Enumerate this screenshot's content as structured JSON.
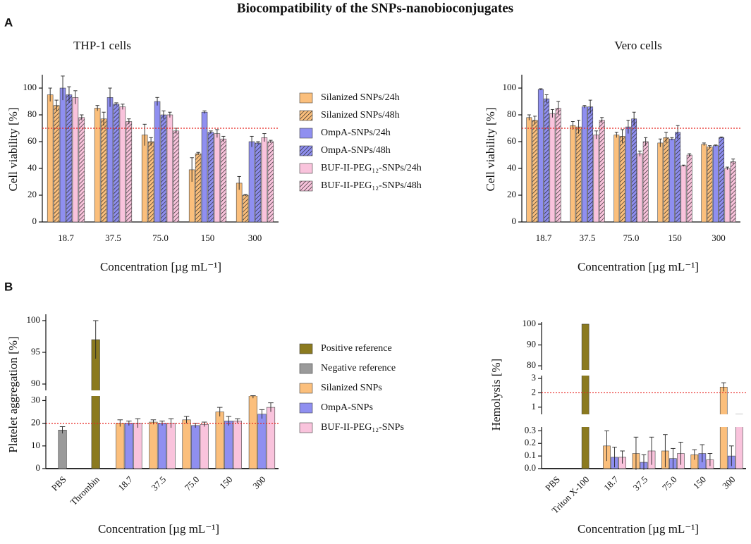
{
  "title": "Biocompatibility of the SNPs-nanobioconjugates",
  "panel_labels": [
    "A",
    "B"
  ],
  "chart_data": [
    {
      "type": "bar",
      "subtitle": "THP-1 cells",
      "y_label": "Cell viability [%]",
      "x_label": "Concentration [µg mL⁻¹]",
      "categories": [
        "18.7",
        "37.5",
        "75.0",
        "150",
        "300"
      ],
      "ylim": [
        0,
        110
      ],
      "yticks": [
        0,
        20,
        40,
        60,
        80,
        100
      ],
      "reference_line": {
        "value": 70,
        "color": "#e8231f"
      },
      "legend": "right",
      "series": [
        {
          "name": "Silanized SNPs/24h",
          "color": "#fbbf7c",
          "hatch": false,
          "values": [
            95,
            85,
            65,
            39,
            29
          ],
          "errors": [
            5,
            2,
            8,
            9,
            5
          ]
        },
        {
          "name": "Silanized SNPs/48h",
          "color": "#fbbf7c",
          "hatch": true,
          "values": [
            87,
            77,
            60,
            51,
            20
          ],
          "errors": [
            4,
            5,
            3,
            1,
            0.5
          ]
        },
        {
          "name": "OmpA-SNPs/24h",
          "color": "#8f8ff0",
          "hatch": false,
          "values": [
            100,
            93,
            90,
            82,
            60
          ],
          "errors": [
            9,
            7,
            3,
            1,
            4
          ]
        },
        {
          "name": "OmpA-SNPs/48h",
          "color": "#8f8ff0",
          "hatch": true,
          "values": [
            95,
            88,
            80,
            67,
            59
          ],
          "errors": [
            6,
            1,
            3,
            1,
            1
          ]
        },
        {
          "name": "BUF-II-PEG₁₂-SNPs/24h",
          "color": "#f9c3dc",
          "hatch": false,
          "values": [
            93,
            86,
            80,
            66,
            63
          ],
          "errors": [
            5,
            2,
            2,
            3,
            3
          ]
        },
        {
          "name": "BUF-II-PEG₁₂-SNPs/48h",
          "color": "#f9c3dc",
          "hatch": true,
          "values": [
            78,
            75,
            68,
            62,
            60
          ],
          "errors": [
            2,
            2,
            2,
            2,
            1
          ]
        }
      ]
    },
    {
      "type": "bar",
      "subtitle": "Vero cells",
      "y_label": "Cell viability [%]",
      "x_label": "Concentration [µg mL⁻¹]",
      "categories": [
        "18.7",
        "37.5",
        "75.0",
        "150",
        "300"
      ],
      "ylim": [
        0,
        110
      ],
      "yticks": [
        0,
        20,
        40,
        60,
        80,
        100
      ],
      "reference_line": {
        "value": 70,
        "color": "#e8231f"
      },
      "series": [
        {
          "name": "Silanized SNPs/24h",
          "color": "#fbbf7c",
          "hatch": false,
          "values": [
            78,
            72,
            65,
            59,
            58
          ],
          "errors": [
            2,
            3,
            2,
            3,
            1
          ]
        },
        {
          "name": "Silanized SNPs/48h",
          "color": "#fbbf7c",
          "hatch": true,
          "values": [
            76,
            71,
            64,
            63,
            56
          ],
          "errors": [
            3,
            5,
            5,
            4,
            1
          ]
        },
        {
          "name": "OmpA-SNPs/24h",
          "color": "#8f8ff0",
          "hatch": false,
          "values": [
            99,
            86,
            71,
            62,
            57
          ],
          "errors": [
            0.5,
            1,
            5,
            1,
            0.5
          ]
        },
        {
          "name": "OmpA-SNPs/48h",
          "color": "#8f8ff0",
          "hatch": true,
          "values": [
            92,
            86,
            77,
            67,
            63
          ],
          "errors": [
            3,
            5,
            5,
            5,
            0.5
          ]
        },
        {
          "name": "BUF-II-PEG₁₂-SNPs/24h",
          "color": "#f9c3dc",
          "hatch": false,
          "values": [
            81,
            65,
            51,
            42,
            40
          ],
          "errors": [
            3,
            3,
            2,
            0.5,
            1
          ]
        },
        {
          "name": "BUF-II-PEG₁₂-SNPs/48h",
          "color": "#f9c3dc",
          "hatch": true,
          "values": [
            85,
            76,
            60,
            50,
            45
          ],
          "errors": [
            5,
            2,
            3,
            1,
            2
          ]
        }
      ]
    },
    {
      "type": "bar",
      "y_label": "Platelet aggregation [%]",
      "x_label": "Concentration [µg mL⁻¹]",
      "categories": [
        "PBS",
        "Thrombin",
        "18.7",
        "37.5",
        "75.0",
        "150",
        "300"
      ],
      "rotate_x_labels": true,
      "y_segments": [
        {
          "ylim": [
            0,
            32
          ],
          "yticks": [
            0,
            10,
            20,
            30
          ]
        },
        {
          "ylim": [
            89,
            101
          ],
          "yticks": [
            90,
            95,
            100
          ]
        }
      ],
      "reference_line": {
        "value": 20,
        "color": "#e8231f"
      },
      "legend": "right",
      "series": [
        {
          "name": "Positive reference",
          "color": "#8b7a1f",
          "hatch": false,
          "values": [
            null,
            97,
            null,
            null,
            null,
            null,
            null
          ],
          "errors": [
            null,
            3,
            null,
            null,
            null,
            null,
            null
          ]
        },
        {
          "name": "Negative reference",
          "color": "#9a9a9a",
          "hatch": false,
          "values": [
            17,
            null,
            null,
            null,
            null,
            null,
            null
          ],
          "errors": [
            1.5,
            null,
            null,
            null,
            null,
            null,
            null
          ]
        },
        {
          "name": "Silanized SNPs",
          "color": "#fbbf7c",
          "hatch": false,
          "values": [
            null,
            null,
            20,
            20.5,
            21.5,
            25,
            33
          ],
          "errors": [
            null,
            null,
            1.5,
            1,
            1.5,
            2,
            2
          ]
        },
        {
          "name": "OmpA-SNPs",
          "color": "#8f8ff0",
          "hatch": false,
          "values": [
            null,
            null,
            20,
            20,
            19,
            21,
            24
          ],
          "errors": [
            null,
            null,
            1,
            1,
            1,
            2,
            2
          ]
        },
        {
          "name": "BUF-II-PEG₁₂-SNPs",
          "color": "#f9c3dc",
          "hatch": false,
          "values": [
            null,
            null,
            20,
            20,
            19.5,
            21,
            27
          ],
          "errors": [
            null,
            null,
            2,
            2,
            1,
            1,
            2
          ]
        }
      ]
    },
    {
      "type": "bar",
      "y_label": "Hemolysis [%]",
      "x_label": "Concentration [µg mL⁻¹]",
      "categories": [
        "PBS",
        "Triton X-100",
        "18.7",
        "37.5",
        "75.0",
        "150",
        "300"
      ],
      "rotate_x_labels": true,
      "y_segments": [
        {
          "ylim": [
            0,
            0.33
          ],
          "yticks": [
            {
              "value": 0,
              "label": "0.0"
            },
            0.1,
            0.2,
            0.3
          ]
        },
        {
          "ylim": [
            0.5,
            3.2
          ],
          "yticks": [
            1,
            2,
            3
          ]
        },
        {
          "ylim": [
            78,
            101
          ],
          "yticks": [
            80,
            90,
            100
          ]
        }
      ],
      "reference_line": {
        "value": 2,
        "color": "#e8231f"
      },
      "series": [
        {
          "name": "Positive reference",
          "color": "#8b7a1f",
          "hatch": false,
          "values": [
            null,
            100,
            null,
            null,
            null,
            null,
            null
          ],
          "errors": [
            null,
            null,
            null,
            null,
            null,
            null,
            null
          ]
        },
        {
          "name": "Silanized SNPs",
          "color": "#fbbf7c",
          "hatch": false,
          "values": [
            null,
            null,
            0.18,
            0.12,
            0.14,
            0.11,
            2.4
          ],
          "errors": [
            null,
            null,
            0.12,
            0.13,
            0.13,
            0.04,
            0.3
          ]
        },
        {
          "name": "OmpA-SNPs",
          "color": "#8f8ff0",
          "hatch": false,
          "values": [
            null,
            null,
            0.09,
            0.05,
            0.08,
            0.12,
            0.1
          ],
          "errors": [
            null,
            null,
            0.08,
            0.06,
            0.08,
            0.07,
            0.08
          ]
        },
        {
          "name": "BUF-II-PEG₁₂-SNPs",
          "color": "#f9c3dc",
          "hatch": false,
          "values": [
            null,
            null,
            0.09,
            0.14,
            0.12,
            0.07,
            0.5
          ],
          "errors": [
            null,
            null,
            0.05,
            0.11,
            0.09,
            0.05,
            null
          ]
        }
      ]
    }
  ]
}
